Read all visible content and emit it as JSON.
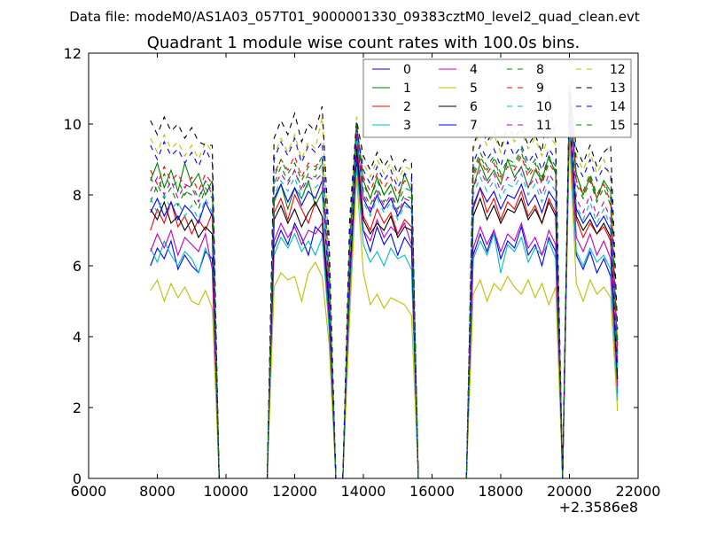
{
  "chart_data": {
    "type": "line",
    "suptitle": "Data file: modeM0/AS1A03_057T01_9000001330_09383cztM0_level2_quad_clean.evt",
    "title": "Quadrant 1 module wise count rates with 100.0s bins.",
    "xlabel": "",
    "ylabel": "",
    "xlim": [
      6000,
      22000
    ],
    "ylim": [
      0,
      12
    ],
    "xticks": [
      6000,
      8000,
      10000,
      12000,
      14000,
      16000,
      18000,
      20000,
      22000
    ],
    "yticks": [
      0,
      2,
      4,
      6,
      8,
      10,
      12
    ],
    "x_offset_text": "+2.3586e8",
    "grid": false,
    "legend_position": "top-right",
    "x_start": 7800,
    "x_step": 200,
    "series": [
      {
        "name": "0",
        "color": "#0000ff",
        "dashed": false,
        "values": [
          6.0,
          6.5,
          6.2,
          6.7,
          5.9,
          6.3,
          6.0,
          5.8,
          6.4,
          6.2,
          0,
          0,
          0,
          0,
          0,
          0,
          0,
          0,
          6.5,
          7.0,
          6.6,
          7.2,
          6.8,
          6.3,
          7.1,
          6.9,
          4.4,
          0,
          0,
          5.2,
          9.0,
          7.0,
          6.4,
          7.1,
          6.6,
          6.9,
          6.3,
          6.8,
          6.5,
          0,
          0,
          0,
          0,
          0,
          0,
          0,
          0,
          6.3,
          6.9,
          6.4,
          7.0,
          6.2,
          6.7,
          6.5,
          7.1,
          6.3,
          6.6,
          6.0,
          6.8,
          6.4,
          0,
          9.8,
          6.3,
          5.9,
          6.4,
          5.8,
          6.2,
          5.7,
          2.4
        ]
      },
      {
        "name": "1",
        "color": "#008000",
        "dashed": false,
        "values": [
          8.4,
          8.9,
          8.2,
          8.7,
          8.1,
          8.9,
          8.3,
          8.6,
          8.0,
          8.4,
          0,
          0,
          0,
          0,
          0,
          0,
          0,
          0,
          7.8,
          8.3,
          7.6,
          8.2,
          7.9,
          8.4,
          7.7,
          8.1,
          5.5,
          0,
          0,
          6.0,
          10.0,
          8.4,
          7.9,
          8.5,
          8.0,
          8.3,
          7.8,
          8.6,
          8.1,
          0,
          0,
          0,
          0,
          0,
          0,
          0,
          0,
          8.2,
          8.9,
          8.4,
          8.7,
          8.3,
          9.0,
          8.5,
          8.8,
          8.2,
          8.7,
          8.4,
          9.1,
          8.6,
          0,
          10.8,
          8.6,
          8.0,
          8.5,
          7.9,
          8.4,
          8.1,
          3.5
        ]
      },
      {
        "name": "2",
        "color": "#ff0000",
        "dashed": false,
        "values": [
          7.0,
          7.6,
          7.2,
          7.8,
          7.1,
          7.4,
          6.9,
          7.3,
          7.0,
          7.5,
          0,
          0,
          0,
          0,
          0,
          0,
          0,
          0,
          7.5,
          7.9,
          7.3,
          8.0,
          7.6,
          7.2,
          7.8,
          7.4,
          5.0,
          0,
          0,
          5.8,
          9.5,
          7.4,
          7.0,
          7.6,
          7.2,
          7.5,
          6.9,
          7.3,
          7.1,
          0,
          0,
          0,
          0,
          0,
          0,
          0,
          0,
          7.6,
          8.2,
          7.5,
          7.9,
          7.3,
          7.8,
          7.6,
          8.1,
          7.4,
          7.7,
          7.2,
          7.9,
          7.5,
          0,
          10.5,
          7.3,
          6.8,
          7.2,
          6.9,
          7.1,
          6.7,
          3.0
        ]
      },
      {
        "name": "3",
        "color": "#00bfbf",
        "dashed": false,
        "values": [
          6.5,
          6.1,
          6.7,
          6.3,
          6.0,
          6.4,
          6.2,
          5.8,
          6.5,
          6.0,
          0,
          0,
          0,
          0,
          0,
          0,
          0,
          0,
          6.3,
          6.8,
          6.5,
          6.9,
          6.4,
          6.7,
          6.3,
          6.8,
          4.2,
          0,
          0,
          5.0,
          8.8,
          6.6,
          6.1,
          6.4,
          6.0,
          6.5,
          6.2,
          6.3,
          5.9,
          0,
          0,
          0,
          0,
          0,
          0,
          0,
          0,
          6.2,
          6.7,
          6.3,
          6.9,
          5.8,
          6.6,
          6.4,
          6.8,
          6.1,
          6.5,
          6.3,
          6.7,
          6.2,
          0,
          9.9,
          6.4,
          6.0,
          6.5,
          6.1,
          6.3,
          5.9,
          2.2
        ]
      },
      {
        "name": "4",
        "color": "#bf00bf",
        "dashed": false,
        "values": [
          6.4,
          6.9,
          6.5,
          7.0,
          6.3,
          6.8,
          6.6,
          6.4,
          6.9,
          5.9,
          0,
          0,
          0,
          0,
          0,
          0,
          0,
          0,
          6.7,
          7.2,
          6.8,
          7.1,
          6.6,
          7.0,
          6.9,
          7.2,
          4.6,
          0,
          0,
          5.4,
          9.2,
          7.0,
          6.7,
          7.3,
          6.8,
          7.1,
          6.9,
          7.2,
          6.6,
          0,
          0,
          0,
          0,
          0,
          0,
          0,
          0,
          6.5,
          7.1,
          6.6,
          7.0,
          6.4,
          6.9,
          6.7,
          7.2,
          6.5,
          6.8,
          6.3,
          7.0,
          6.6,
          0,
          10.2,
          6.8,
          6.4,
          6.9,
          6.3,
          6.7,
          6.2,
          2.6
        ]
      },
      {
        "name": "5",
        "color": "#bfbf00",
        "dashed": false,
        "values": [
          5.3,
          5.6,
          5.0,
          5.5,
          5.1,
          5.4,
          5.0,
          4.9,
          5.3,
          4.8,
          0,
          0,
          0,
          0,
          0,
          0,
          0,
          0,
          5.4,
          5.8,
          5.6,
          5.7,
          5.0,
          5.8,
          6.1,
          5.7,
          3.8,
          0,
          0,
          4.5,
          8.5,
          5.8,
          4.9,
          5.2,
          4.8,
          5.1,
          5.0,
          4.9,
          4.6,
          0,
          0,
          0,
          0,
          0,
          0,
          0,
          0,
          5.2,
          5.6,
          5.0,
          5.5,
          5.3,
          5.7,
          5.4,
          5.2,
          5.6,
          5.1,
          5.5,
          4.9,
          5.4,
          0,
          9.5,
          5.5,
          5.0,
          5.6,
          5.2,
          5.4,
          5.1,
          1.9
        ]
      },
      {
        "name": "6",
        "color": "#000000",
        "dashed": false,
        "values": [
          7.6,
          7.3,
          7.8,
          7.2,
          7.4,
          7.0,
          7.3,
          6.8,
          7.1,
          6.9,
          0,
          0,
          0,
          0,
          0,
          0,
          0,
          0,
          7.3,
          7.7,
          7.2,
          7.6,
          7.1,
          7.5,
          7.8,
          7.4,
          4.9,
          0,
          0,
          5.7,
          9.3,
          7.3,
          6.9,
          7.2,
          7.0,
          7.4,
          6.8,
          7.1,
          7.0,
          0,
          0,
          0,
          0,
          0,
          0,
          0,
          0,
          7.4,
          7.9,
          7.3,
          7.7,
          7.2,
          7.6,
          7.5,
          7.9,
          7.3,
          7.6,
          7.2,
          7.8,
          7.4,
          0,
          10.4,
          7.4,
          7.0,
          7.3,
          6.9,
          7.2,
          6.8,
          2.8
        ]
      },
      {
        "name": "7",
        "color": "#0000ff",
        "dashed": false,
        "values": [
          7.5,
          7.9,
          7.4,
          7.8,
          7.3,
          7.7,
          7.5,
          7.2,
          7.8,
          7.4,
          0,
          0,
          0,
          0,
          0,
          0,
          0,
          0,
          7.9,
          8.3,
          7.8,
          8.2,
          7.7,
          8.1,
          7.9,
          8.4,
          5.2,
          0,
          0,
          6.1,
          9.7,
          7.9,
          7.5,
          8.0,
          7.6,
          7.9,
          7.4,
          7.8,
          7.6,
          0,
          0,
          0,
          0,
          0,
          0,
          0,
          0,
          7.7,
          8.2,
          7.8,
          8.1,
          7.6,
          8.0,
          7.9,
          8.3,
          7.7,
          8.0,
          7.5,
          8.1,
          7.8,
          0,
          10.6,
          7.6,
          7.2,
          7.5,
          7.1,
          7.4,
          7.0,
          3.2
        ]
      },
      {
        "name": "8",
        "color": "#008000",
        "dashed": true,
        "values": [
          7.8,
          8.3,
          7.9,
          8.2,
          7.7,
          8.1,
          8.0,
          7.6,
          8.2,
          7.9,
          0,
          0,
          0,
          0,
          0,
          0,
          0,
          0,
          8.3,
          8.8,
          8.4,
          8.7,
          8.2,
          8.6,
          8.5,
          8.9,
          5.6,
          0,
          0,
          6.4,
          10.1,
          8.1,
          7.7,
          8.2,
          7.8,
          8.1,
          7.6,
          8.0,
          7.9,
          0,
          0,
          0,
          0,
          0,
          0,
          0,
          0,
          8.6,
          9.1,
          8.7,
          9.0,
          8.5,
          8.9,
          8.8,
          9.2,
          8.6,
          8.9,
          8.4,
          9.0,
          8.7,
          0,
          11.0,
          8.3,
          7.9,
          8.4,
          7.8,
          8.2,
          7.7,
          3.6
        ]
      },
      {
        "name": "9",
        "color": "#ff0000",
        "dashed": true,
        "values": [
          8.7,
          8.3,
          8.8,
          8.4,
          8.6,
          8.2,
          8.5,
          8.1,
          8.6,
          8.3,
          0,
          0,
          0,
          0,
          0,
          0,
          0,
          0,
          8.6,
          9.0,
          8.7,
          9.1,
          8.5,
          8.9,
          8.8,
          9.0,
          5.8,
          0,
          0,
          6.6,
          10.0,
          8.5,
          8.1,
          8.6,
          8.2,
          8.5,
          8.0,
          8.4,
          8.3,
          0,
          0,
          0,
          0,
          0,
          0,
          0,
          0,
          8.5,
          9.0,
          8.6,
          8.9,
          8.4,
          8.8,
          8.7,
          9.1,
          8.5,
          8.8,
          8.3,
          8.9,
          8.6,
          0,
          10.9,
          8.4,
          8.0,
          8.5,
          7.9,
          8.3,
          7.8,
          3.7
        ]
      },
      {
        "name": "10",
        "color": "#00bfbf",
        "dashed": true,
        "values": [
          7.9,
          7.5,
          8.0,
          7.6,
          7.8,
          7.4,
          7.7,
          7.3,
          7.9,
          7.5,
          0,
          0,
          0,
          0,
          0,
          0,
          0,
          0,
          8.0,
          8.4,
          8.1,
          8.5,
          7.9,
          8.3,
          8.2,
          8.4,
          5.3,
          0,
          0,
          6.0,
          9.6,
          7.8,
          7.4,
          7.9,
          7.5,
          7.8,
          7.3,
          7.7,
          7.6,
          0,
          0,
          0,
          0,
          0,
          0,
          0,
          0,
          8.0,
          8.5,
          8.1,
          8.4,
          7.9,
          8.3,
          8.2,
          8.6,
          8.0,
          8.3,
          7.8,
          8.4,
          8.1,
          0,
          10.3,
          7.7,
          7.3,
          7.8,
          7.2,
          7.6,
          7.1,
          3.1
        ]
      },
      {
        "name": "11",
        "color": "#bf00bf",
        "dashed": true,
        "values": [
          8.1,
          8.5,
          8.0,
          8.4,
          7.9,
          8.3,
          8.2,
          7.8,
          8.4,
          8.0,
          0,
          0,
          0,
          0,
          0,
          0,
          0,
          0,
          8.2,
          8.6,
          8.3,
          8.7,
          8.1,
          8.5,
          8.4,
          8.6,
          5.5,
          0,
          0,
          6.2,
          9.8,
          8.0,
          7.6,
          8.1,
          7.7,
          8.0,
          7.5,
          7.9,
          7.8,
          0,
          0,
          0,
          0,
          0,
          0,
          0,
          0,
          8.2,
          8.7,
          8.3,
          8.6,
          8.1,
          8.5,
          8.4,
          8.8,
          8.2,
          8.5,
          8.0,
          8.6,
          8.3,
          0,
          10.7,
          7.9,
          7.5,
          8.0,
          7.4,
          7.8,
          7.3,
          3.3
        ]
      },
      {
        "name": "12",
        "color": "#bfbf00",
        "dashed": true,
        "values": [
          9.6,
          9.2,
          9.7,
          9.3,
          9.5,
          9.1,
          9.4,
          9.0,
          9.5,
          9.2,
          0,
          0,
          0,
          0,
          0,
          0,
          0,
          0,
          9.1,
          9.6,
          9.2,
          9.7,
          9.0,
          9.5,
          9.3,
          10.2,
          6.5,
          0,
          0,
          7.0,
          10.2,
          8.9,
          8.5,
          9.0,
          8.6,
          8.9,
          8.4,
          8.8,
          8.7,
          0,
          0,
          0,
          0,
          0,
          0,
          0,
          0,
          9.3,
          9.8,
          9.4,
          9.7,
          9.2,
          9.9,
          9.5,
          9.8,
          9.3,
          9.6,
          9.1,
          9.7,
          9.4,
          0,
          11.2,
          9.1,
          8.7,
          9.2,
          8.6,
          9.0,
          8.5,
          4.0
        ]
      },
      {
        "name": "13",
        "color": "#000000",
        "dashed": true,
        "values": [
          10.1,
          9.7,
          10.2,
          9.8,
          10.0,
          9.6,
          9.9,
          9.5,
          9.4,
          9.4,
          0,
          0,
          0,
          0,
          0,
          0,
          0,
          0,
          9.6,
          10.1,
          9.7,
          10.3,
          9.5,
          10.0,
          9.8,
          10.5,
          6.8,
          0,
          0,
          7.3,
          10.1,
          9.1,
          8.7,
          9.2,
          8.8,
          9.1,
          8.6,
          9.0,
          8.9,
          0,
          0,
          0,
          0,
          0,
          0,
          0,
          0,
          9.4,
          9.9,
          9.5,
          9.8,
          9.3,
          10.0,
          9.6,
          9.9,
          9.4,
          9.7,
          9.2,
          10.8,
          9.5,
          0,
          11.1,
          9.3,
          8.9,
          9.4,
          8.8,
          9.2,
          9.4,
          4.2
        ]
      },
      {
        "name": "14",
        "color": "#0000ff",
        "dashed": true,
        "values": [
          9.4,
          9.0,
          9.5,
          9.1,
          9.3,
          8.9,
          9.2,
          8.8,
          9.3,
          8.9,
          0,
          0,
          0,
          0,
          0,
          0,
          0,
          0,
          9.0,
          9.5,
          9.1,
          9.6,
          8.9,
          9.4,
          9.2,
          9.5,
          6.3,
          0,
          0,
          6.9,
          9.9,
          8.7,
          8.3,
          8.8,
          8.4,
          8.7,
          8.2,
          8.6,
          8.5,
          0,
          0,
          0,
          0,
          0,
          0,
          0,
          0,
          8.9,
          9.4,
          9.0,
          9.3,
          8.8,
          9.5,
          9.1,
          9.4,
          8.9,
          9.2,
          8.7,
          9.3,
          9.0,
          0,
          10.9,
          8.9,
          8.5,
          9.0,
          8.4,
          8.8,
          8.6,
          3.9
        ]
      },
      {
        "name": "15",
        "color": "#008000",
        "dashed": true,
        "values": [
          8.5,
          8.1,
          8.6,
          8.2,
          8.4,
          8.0,
          8.3,
          7.9,
          8.4,
          8.1,
          0,
          0,
          0,
          0,
          0,
          0,
          0,
          0,
          8.5,
          9.0,
          8.6,
          8.9,
          8.4,
          8.8,
          8.7,
          9.1,
          5.9,
          0,
          0,
          6.5,
          10.0,
          8.3,
          7.9,
          8.4,
          8.0,
          8.3,
          7.8,
          8.2,
          8.1,
          0,
          0,
          0,
          0,
          0,
          0,
          0,
          0,
          8.7,
          9.2,
          8.8,
          9.1,
          8.6,
          9.0,
          8.9,
          9.3,
          8.7,
          9.0,
          8.5,
          9.1,
          8.8,
          0,
          10.8,
          8.5,
          8.1,
          8.6,
          8.0,
          8.4,
          7.9,
          3.8
        ]
      }
    ]
  }
}
